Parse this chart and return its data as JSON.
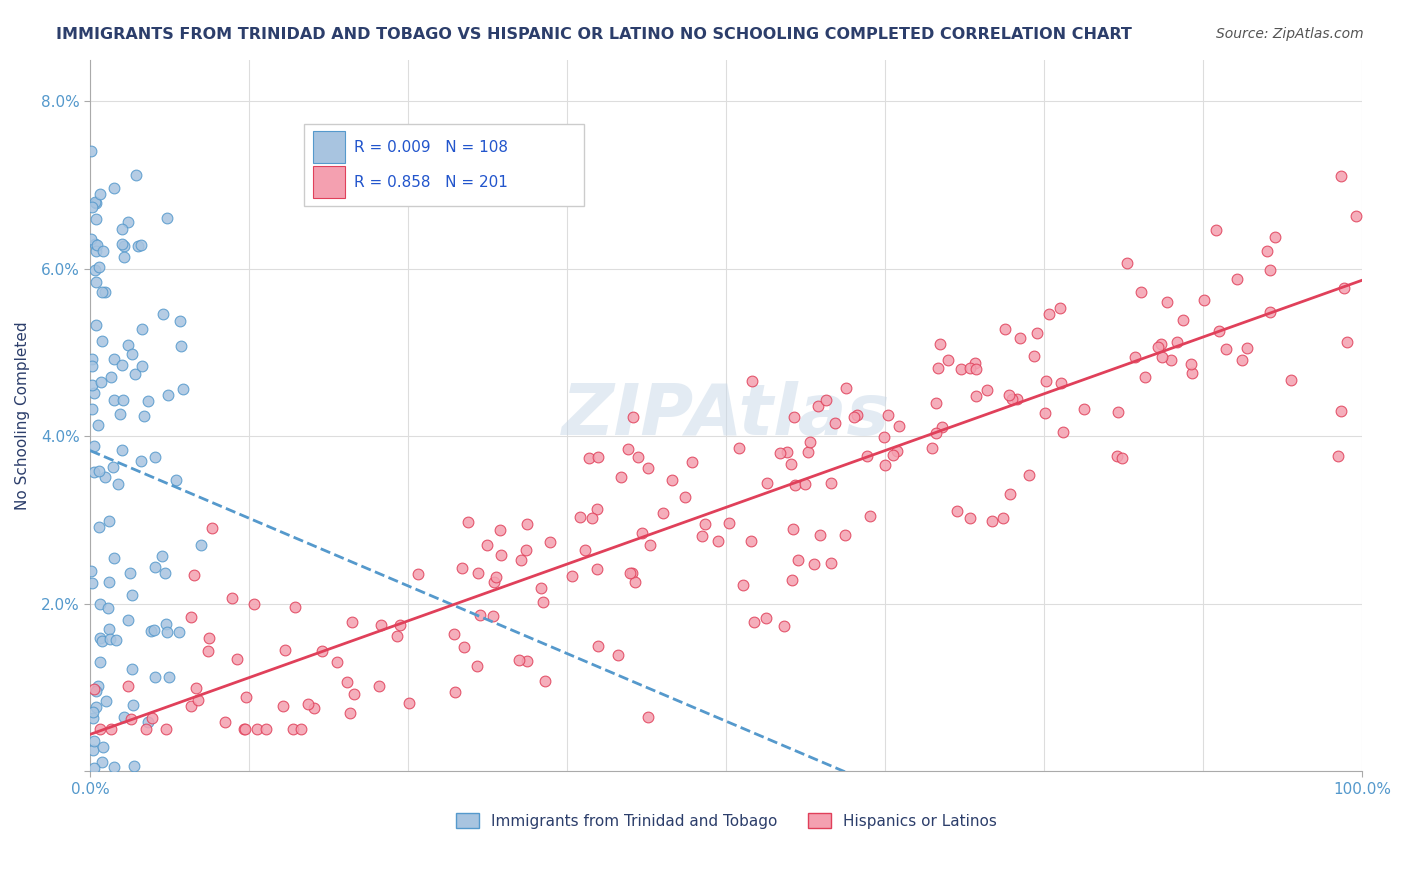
{
  "title": "IMMIGRANTS FROM TRINIDAD AND TOBAGO VS HISPANIC OR LATINO NO SCHOOLING COMPLETED CORRELATION CHART",
  "source": "Source: ZipAtlas.com",
  "xlabel": "",
  "ylabel": "No Schooling Completed",
  "legend_blue_label": "Immigrants from Trinidad and Tobago",
  "legend_pink_label": "Hispanics or Latinos",
  "legend_blue_r": "R = 0.009",
  "legend_blue_n": "N = 108",
  "legend_pink_r": "R = 0.858",
  "legend_pink_n": "N = 201",
  "blue_color": "#a8c4e0",
  "pink_color": "#f4a0b0",
  "blue_line_color": "#5599cc",
  "pink_line_color": "#e0405a",
  "title_color": "#2c3e6b",
  "source_color": "#555555",
  "legend_text_color": "#2255cc",
  "axis_color": "#aaaaaa",
  "watermark_color": "#c8d8e8",
  "background_color": "#ffffff",
  "grid_color": "#dddddd",
  "xlim": [
    0.0,
    1.0
  ],
  "ylim": [
    0.0,
    0.085
  ],
  "yticks": [
    0.0,
    0.02,
    0.04,
    0.06,
    0.08
  ],
  "ytick_labels": [
    "",
    "2.0%",
    "4.0%",
    "6.0%",
    "8.0%"
  ],
  "xtick_labels": [
    "0.0%",
    "100.0%"
  ],
  "blue_R": 0.009,
  "blue_N": 108,
  "pink_R": 0.858,
  "pink_N": 201,
  "random_seed_blue": 42,
  "random_seed_pink": 123
}
